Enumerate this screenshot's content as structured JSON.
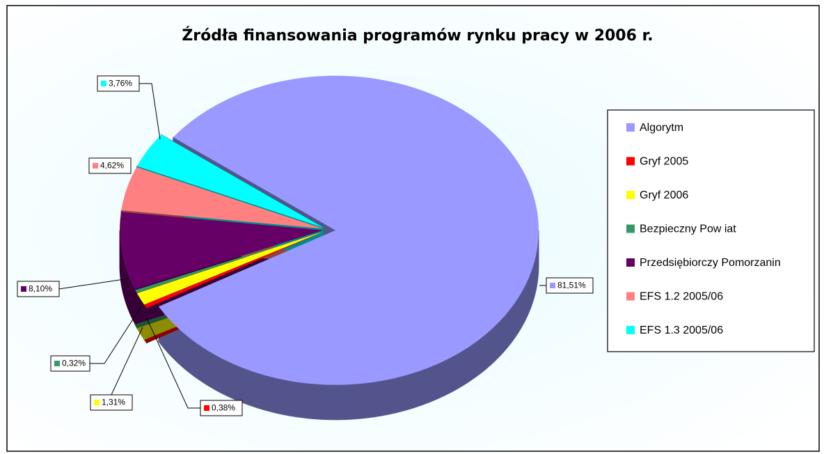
{
  "chart_data": {
    "type": "pie3d",
    "title": "Źródła finansowania programów rynku pracy w 2006 r.",
    "categories": [
      "Algorytm",
      "Gryf 2005",
      "Gryf 2006",
      "Bezpieczny Pow iat",
      "Przedsiębiorczy Pomorzanin",
      "EFS 1.2 2005/06",
      "EFS 1.3 2005/06"
    ],
    "values": [
      81.51,
      0.38,
      1.31,
      0.32,
      8.1,
      4.62,
      3.76
    ],
    "value_labels": [
      "81,51%",
      "0,38%",
      "1,31%",
      "0,32%",
      "8,10%",
      "4,62%",
      "3,76%"
    ],
    "colors": [
      "#9999ff",
      "#ff0000",
      "#ffff00",
      "#339966",
      "#660066",
      "#ff8080",
      "#00ffff"
    ],
    "legend": "right"
  }
}
